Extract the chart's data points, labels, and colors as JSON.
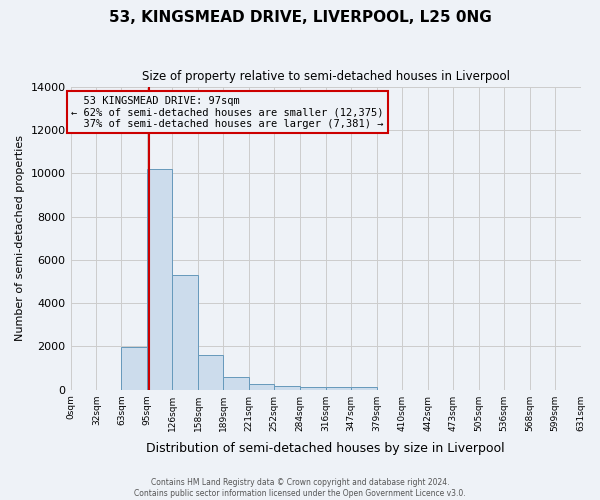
{
  "title": "53, KINGSMEAD DRIVE, LIVERPOOL, L25 0NG",
  "subtitle": "Size of property relative to semi-detached houses in Liverpool",
  "xlabel": "Distribution of semi-detached houses by size in Liverpool",
  "ylabel": "Number of semi-detached properties",
  "bin_edges": [
    0,
    32,
    63,
    95,
    126,
    158,
    189,
    221,
    252,
    284,
    316,
    347,
    379,
    410,
    442,
    473,
    505,
    536,
    568,
    599,
    631
  ],
  "bin_counts": [
    0,
    0,
    1950,
    10200,
    5300,
    1580,
    600,
    270,
    155,
    125,
    115,
    115,
    0,
    0,
    0,
    0,
    0,
    0,
    0,
    0
  ],
  "property_size": 97,
  "pct_smaller": 62,
  "pct_smaller_n": "12,375",
  "pct_larger": 37,
  "pct_larger_n": "7,381",
  "bar_color": "#ccdcec",
  "bar_edge_color": "#6699bb",
  "red_line_color": "#cc0000",
  "annotation_box_edge_color": "#cc0000",
  "ylim": [
    0,
    14000
  ],
  "yticks": [
    0,
    2000,
    4000,
    6000,
    8000,
    10000,
    12000,
    14000
  ],
  "grid_color": "#cccccc",
  "bg_color": "#eef2f7",
  "footer_line1": "Contains HM Land Registry data © Crown copyright and database right 2024.",
  "footer_line2": "Contains public sector information licensed under the Open Government Licence v3.0."
}
